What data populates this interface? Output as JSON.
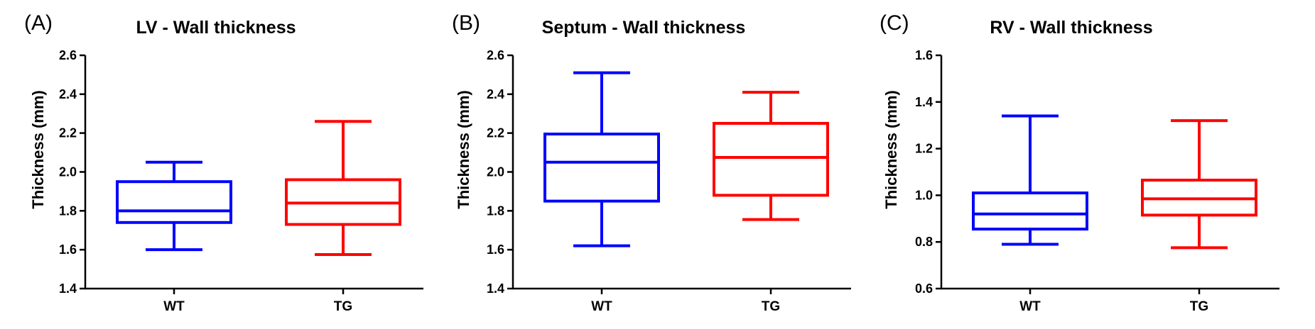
{
  "chart_data": [
    {
      "type": "boxplot",
      "panel": "(A)",
      "title": "LV - Wall thickness",
      "ylabel": "Thickness (mm)",
      "ylim": [
        1.4,
        2.6
      ],
      "yticks": [
        "1.4",
        "1.6",
        "1.8",
        "2.0",
        "2.2",
        "2.4",
        "2.6"
      ],
      "categories": [
        "WT",
        "TG"
      ],
      "series": [
        {
          "category": "WT",
          "color": "#0000ff",
          "min": 1.6,
          "q1": 1.74,
          "median": 1.8,
          "q3": 1.95,
          "max": 2.05
        },
        {
          "category": "TG",
          "color": "#ff0000",
          "min": 1.575,
          "q1": 1.73,
          "median": 1.84,
          "q3": 1.96,
          "max": 2.26
        }
      ]
    },
    {
      "type": "boxplot",
      "panel": "(B)",
      "title": "Septum - Wall thickness",
      "ylabel": "Thickness (mm)",
      "ylim": [
        1.4,
        2.6
      ],
      "yticks": [
        "1.4",
        "1.6",
        "1.8",
        "2.0",
        "2.2",
        "2.4",
        "2.6"
      ],
      "categories": [
        "WT",
        "TG"
      ],
      "series": [
        {
          "category": "WT",
          "color": "#0000ff",
          "min": 1.62,
          "q1": 1.85,
          "median": 2.05,
          "q3": 2.195,
          "max": 2.51
        },
        {
          "category": "TG",
          "color": "#ff0000",
          "min": 1.755,
          "q1": 1.88,
          "median": 2.075,
          "q3": 2.25,
          "max": 2.41
        }
      ]
    },
    {
      "type": "boxplot",
      "panel": "(C)",
      "title": "RV - Wall thickness",
      "ylabel": "Thickness (mm)",
      "ylim": [
        0.6,
        1.6
      ],
      "yticks": [
        "0.6",
        "0.8",
        "1.0",
        "1.2",
        "1.4",
        "1.6"
      ],
      "categories": [
        "WT",
        "TG"
      ],
      "series": [
        {
          "category": "WT",
          "color": "#0000ff",
          "min": 0.79,
          "q1": 0.855,
          "median": 0.92,
          "q3": 1.01,
          "max": 1.34
        },
        {
          "category": "TG",
          "color": "#ff0000",
          "min": 0.775,
          "q1": 0.915,
          "median": 0.985,
          "q3": 1.065,
          "max": 1.32
        }
      ]
    }
  ]
}
